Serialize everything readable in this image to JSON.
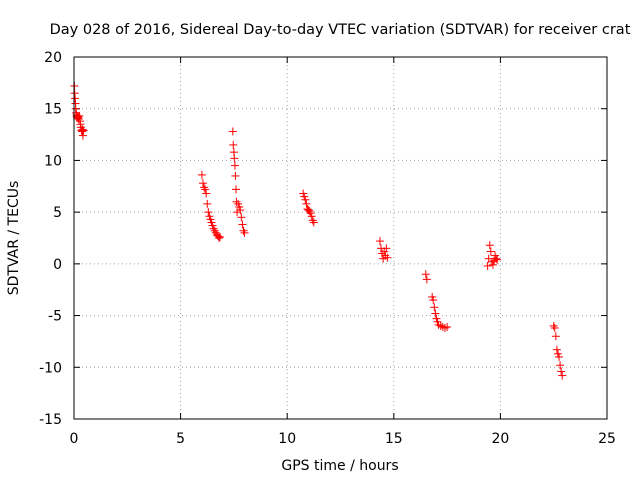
{
  "chart_data": {
    "type": "scatter",
    "title": "Day 028 of 2016, Sidereal Day-to-day VTEC variation (SDTVAR) for receiver crat",
    "xlabel": "GPS time / hours",
    "ylabel": "SDTVAR / TECUs",
    "xlim": [
      0,
      25
    ],
    "ylim": [
      -15,
      20
    ],
    "xticks": [
      0,
      5,
      10,
      15,
      20,
      25
    ],
    "yticks": [
      -15,
      -10,
      -5,
      0,
      5,
      10,
      15,
      20
    ],
    "xtick_labels": [
      "0",
      "5",
      "10",
      "15",
      "20",
      "25"
    ],
    "ytick_labels": [
      "-15",
      "-10",
      "-5",
      "0",
      "5",
      "10",
      "15",
      "20"
    ],
    "grid": true,
    "marker": "+",
    "color": "#ff0000",
    "series": [
      {
        "name": "SDTVAR",
        "x": [
          0.02,
          0.03,
          0.05,
          0.07,
          0.08,
          0.1,
          0.12,
          0.13,
          0.15,
          0.18,
          0.2,
          0.22,
          0.25,
          0.28,
          0.3,
          0.32,
          0.35,
          0.38,
          0.4,
          0.42,
          0.45,
          6.0,
          6.05,
          6.1,
          6.15,
          6.2,
          6.25,
          6.3,
          6.35,
          6.4,
          6.45,
          6.5,
          6.55,
          6.6,
          6.65,
          6.7,
          6.75,
          6.8,
          6.85,
          7.45,
          7.47,
          7.5,
          7.52,
          7.55,
          7.57,
          7.6,
          7.62,
          7.65,
          7.7,
          7.75,
          7.8,
          7.85,
          7.9,
          7.95,
          8.0,
          10.75,
          10.8,
          10.85,
          10.9,
          10.95,
          11.0,
          11.05,
          11.1,
          11.15,
          11.2,
          11.25,
          14.35,
          14.4,
          14.45,
          14.5,
          14.55,
          14.6,
          14.65,
          14.7,
          16.5,
          16.55,
          16.8,
          16.85,
          16.9,
          16.95,
          17.0,
          17.05,
          17.1,
          17.2,
          17.3,
          17.4,
          17.5,
          19.4,
          19.45,
          19.5,
          19.55,
          19.6,
          19.65,
          19.7,
          19.75,
          19.8,
          19.85,
          22.5,
          22.55,
          22.6,
          22.65,
          22.7,
          22.75,
          22.8,
          22.85,
          22.9
        ],
        "y": [
          17.2,
          16.5,
          16.0,
          15.5,
          15.0,
          14.6,
          14.4,
          14.2,
          14.3,
          14.1,
          14.2,
          14.0,
          14.3,
          13.8,
          13.5,
          13.2,
          12.9,
          12.8,
          13.0,
          12.4,
          12.9,
          8.6,
          7.8,
          7.4,
          7.2,
          6.8,
          5.8,
          5.0,
          4.6,
          4.3,
          4.0,
          3.7,
          3.4,
          3.2,
          3.0,
          2.8,
          2.7,
          2.5,
          2.6,
          12.8,
          11.5,
          10.8,
          10.2,
          9.5,
          8.5,
          7.2,
          6.0,
          5.0,
          5.8,
          5.5,
          5.2,
          4.5,
          3.8,
          3.2,
          3.0,
          6.8,
          6.5,
          6.2,
          5.8,
          5.3,
          5.2,
          5.1,
          4.9,
          4.6,
          4.2,
          4.0,
          2.2,
          1.5,
          1.0,
          0.5,
          1.2,
          0.8,
          1.5,
          0.6,
          -1.0,
          -1.5,
          -3.2,
          -3.5,
          -4.2,
          -4.8,
          -5.3,
          -5.6,
          -5.9,
          -6.0,
          -6.1,
          -6.2,
          -6.1,
          -0.2,
          0.5,
          1.8,
          1.2,
          0.2,
          -0.1,
          0.3,
          0.8,
          0.5,
          0.4,
          -6.0,
          -6.2,
          -7.0,
          -8.3,
          -8.7,
          -9.0,
          -9.8,
          -10.4,
          -10.8
        ]
      }
    ]
  }
}
